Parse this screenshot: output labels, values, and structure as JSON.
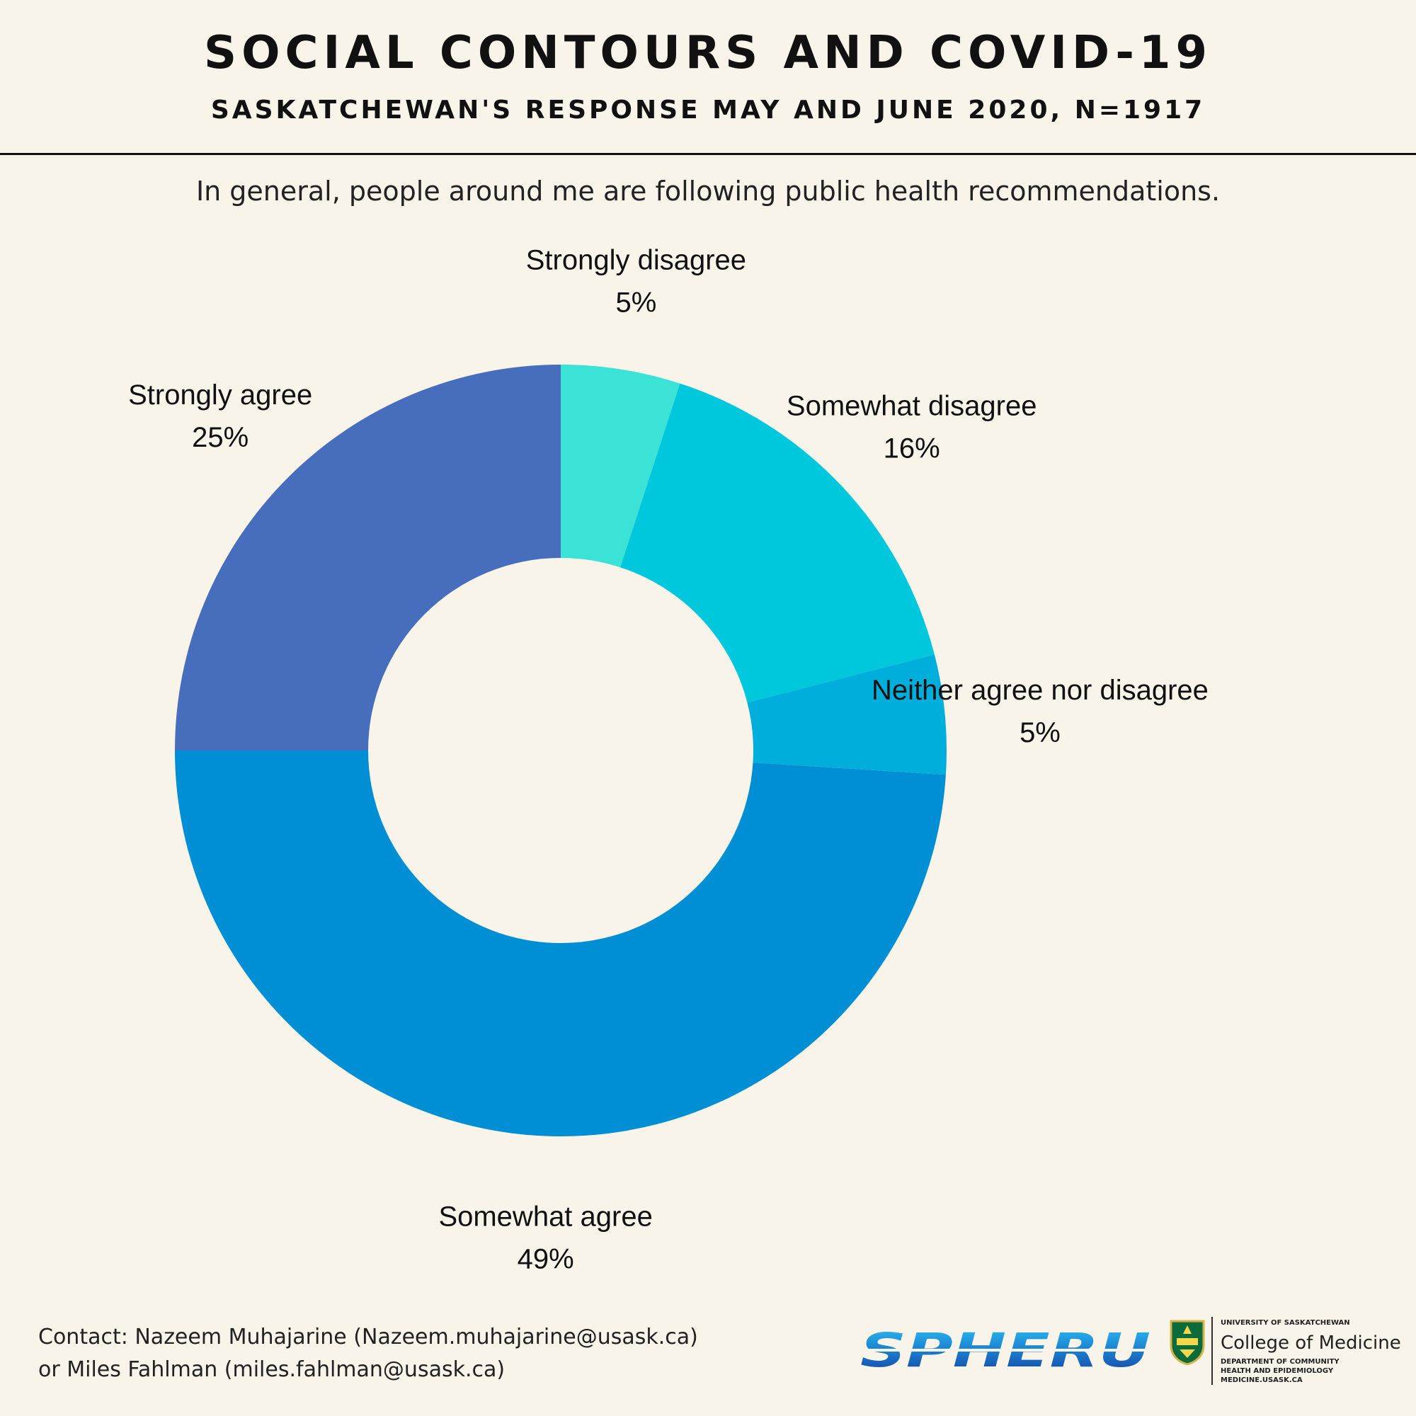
{
  "header": {
    "title": "SOCIAL CONTOURS AND COVID-19",
    "subtitle": "SASKATCHEWAN'S RESPONSE MAY AND JUNE 2020, N=1917"
  },
  "chart_data": {
    "type": "pie",
    "variant": "donut",
    "title": "In general, people around me are following public health recommendations.",
    "start": "12 o'clock",
    "direction": "clockwise",
    "slices": [
      {
        "label": "Strongly disagree",
        "value": 5,
        "display": "5%",
        "color": "#3ae3d6"
      },
      {
        "label": "Somewhat disagree",
        "value": 16,
        "display": "16%",
        "color": "#00c8dc"
      },
      {
        "label": "Neither agree nor disagree",
        "value": 5,
        "display": "5%",
        "color": "#00aedc"
      },
      {
        "label": "Somewhat agree",
        "value": 49,
        "display": "49%",
        "color": "#008fd5"
      },
      {
        "label": "Strongly agree",
        "value": 25,
        "display": "25%",
        "color": "#466ebd"
      }
    ]
  },
  "footer": {
    "contact_line1": "Contact: Nazeem Muhajarine (Nazeem.muhajarine@usask.ca)",
    "contact_line2": "or Miles Fahlman (miles.fahlman@usask.ca)",
    "logo_spheru": "SPHERU",
    "usask_university": "UNIVERSITY OF SASKATCHEWAN",
    "usask_college": "College of Medicine",
    "usask_dept_line1": "DEPARTMENT OF COMMUNITY",
    "usask_dept_line2": "HEALTH AND EPIDEMIOLOGY",
    "usask_url": "MEDICINE.USASK.CA"
  }
}
